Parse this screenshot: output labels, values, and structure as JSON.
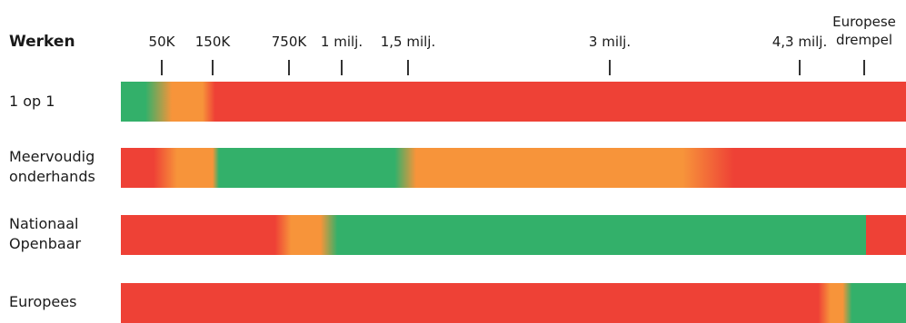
{
  "chart_data": {
    "type": "heatmap",
    "title": "Werken",
    "ticks": [
      {
        "label": "50K",
        "value": 50000
      },
      {
        "label": "150K",
        "value": 150000
      },
      {
        "label": "750K",
        "value": 750000
      },
      {
        "label": "1 milj.",
        "value": 1000000
      },
      {
        "label": "1,5 milj.",
        "value": 1500000
      },
      {
        "label": "3 milj.",
        "value": 3000000
      },
      {
        "label": "4,3 milj.",
        "value": 4300000
      },
      {
        "label": "Europese drempel",
        "value": 5350000
      }
    ],
    "colors": {
      "green": "#33b06a",
      "orange": "#f7943a",
      "red": "#ee4136"
    },
    "rows": [
      {
        "label": "1 op 1",
        "stops": [
          {
            "at": 0,
            "color": "green"
          },
          {
            "at": 30000,
            "color": "green"
          },
          {
            "at": 70000,
            "color": "orange"
          },
          {
            "at": 130000,
            "color": "orange"
          },
          {
            "at": 170000,
            "color": "red"
          },
          {
            "at": 6000000,
            "color": "red"
          }
        ]
      },
      {
        "label": "Meervoudig onderhands",
        "stops": [
          {
            "at": 0,
            "color": "red"
          },
          {
            "at": 40000,
            "color": "red"
          },
          {
            "at": 80000,
            "color": "orange"
          },
          {
            "at": 150000,
            "color": "orange"
          },
          {
            "at": 200000,
            "color": "green"
          },
          {
            "at": 1400000,
            "color": "green"
          },
          {
            "at": 1560000,
            "color": "orange"
          },
          {
            "at": 3500000,
            "color": "orange"
          },
          {
            "at": 3850000,
            "color": "red"
          },
          {
            "at": 6000000,
            "color": "red"
          }
        ]
      },
      {
        "label": "Nationaal Openbaar",
        "stops": [
          {
            "at": 0,
            "color": "red"
          },
          {
            "at": 640000,
            "color": "red"
          },
          {
            "at": 760000,
            "color": "orange"
          },
          {
            "at": 900000,
            "color": "orange"
          },
          {
            "at": 980000,
            "color": "green"
          },
          {
            "at": 5380000,
            "color": "green"
          },
          {
            "at": 5380001,
            "color": "red"
          },
          {
            "at": 6000000,
            "color": "red"
          }
        ]
      },
      {
        "label": "Europees",
        "stops": [
          {
            "at": 0,
            "color": "red"
          },
          {
            "at": 4600000,
            "color": "red"
          },
          {
            "at": 4800000,
            "color": "orange"
          },
          {
            "at": 5000000,
            "color": "orange"
          },
          {
            "at": 5150000,
            "color": "green"
          },
          {
            "at": 6000000,
            "color": "green"
          }
        ]
      }
    ]
  }
}
